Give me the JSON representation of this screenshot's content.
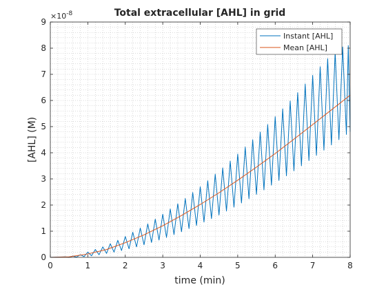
{
  "chart_data": {
    "type": "line",
    "title": "Total extracellular [AHL] in grid",
    "xlabel": "time (min)",
    "ylabel": "[AHL] (M)",
    "y_exponent_label": "×10",
    "y_exponent": "-8",
    "xlim": [
      0,
      8
    ],
    "ylim": [
      0,
      9
    ],
    "xticks": [
      "0",
      "1",
      "2",
      "3",
      "4",
      "5",
      "6",
      "7",
      "8"
    ],
    "yticks": [
      "0",
      "1",
      "2",
      "3",
      "4",
      "5",
      "6",
      "7",
      "8",
      "9"
    ],
    "grid": "minor-dotted",
    "legend_position": "top-right",
    "series": [
      {
        "name": "Instant [AHL]",
        "color": "#0072BD",
        "style": "sawtooth",
        "pulse_period": 0.2,
        "peaks": [
          [
            0.4,
            0.02
          ],
          [
            0.6,
            0.05
          ],
          [
            0.8,
            0.1
          ],
          [
            1.0,
            0.2
          ],
          [
            1.2,
            0.3
          ],
          [
            1.4,
            0.4
          ],
          [
            1.6,
            0.52
          ],
          [
            1.8,
            0.65
          ],
          [
            2.0,
            0.8
          ],
          [
            2.2,
            0.96
          ],
          [
            2.4,
            1.12
          ],
          [
            2.6,
            1.28
          ],
          [
            2.8,
            1.46
          ],
          [
            3.0,
            1.65
          ],
          [
            3.2,
            1.85
          ],
          [
            3.4,
            2.05
          ],
          [
            3.6,
            2.25
          ],
          [
            3.8,
            2.48
          ],
          [
            4.0,
            2.7
          ],
          [
            4.2,
            2.93
          ],
          [
            4.4,
            3.18
          ],
          [
            4.6,
            3.42
          ],
          [
            4.8,
            3.68
          ],
          [
            5.0,
            3.95
          ],
          [
            5.2,
            4.22
          ],
          [
            5.4,
            4.5
          ],
          [
            5.6,
            4.79
          ],
          [
            5.8,
            5.08
          ],
          [
            6.0,
            5.38
          ],
          [
            6.2,
            5.68
          ],
          [
            6.4,
            5.98
          ],
          [
            6.6,
            6.3
          ],
          [
            6.8,
            6.63
          ],
          [
            7.0,
            6.96
          ],
          [
            7.2,
            7.29
          ],
          [
            7.4,
            7.6
          ],
          [
            7.6,
            7.85
          ],
          [
            7.8,
            8.05
          ],
          [
            7.95,
            8.1
          ]
        ],
        "troughs": [
          [
            0.5,
            0.0
          ],
          [
            0.7,
            0.01
          ],
          [
            0.9,
            0.03
          ],
          [
            1.1,
            0.06
          ],
          [
            1.3,
            0.1
          ],
          [
            1.5,
            0.15
          ],
          [
            1.7,
            0.2
          ],
          [
            1.9,
            0.26
          ],
          [
            2.1,
            0.33
          ],
          [
            2.3,
            0.4
          ],
          [
            2.5,
            0.48
          ],
          [
            2.7,
            0.57
          ],
          [
            2.9,
            0.66
          ],
          [
            3.1,
            0.76
          ],
          [
            3.3,
            0.87
          ],
          [
            3.5,
            0.98
          ],
          [
            3.7,
            1.1
          ],
          [
            3.9,
            1.22
          ],
          [
            4.1,
            1.35
          ],
          [
            4.3,
            1.48
          ],
          [
            4.5,
            1.62
          ],
          [
            4.7,
            1.77
          ],
          [
            4.9,
            1.92
          ],
          [
            5.1,
            2.08
          ],
          [
            5.3,
            2.24
          ],
          [
            5.5,
            2.41
          ],
          [
            5.7,
            2.58
          ],
          [
            5.9,
            2.76
          ],
          [
            6.1,
            2.94
          ],
          [
            6.3,
            3.12
          ],
          [
            6.5,
            3.31
          ],
          [
            6.7,
            3.5
          ],
          [
            6.9,
            3.7
          ],
          [
            7.1,
            3.9
          ],
          [
            7.3,
            4.1
          ],
          [
            7.5,
            4.3
          ],
          [
            7.7,
            4.5
          ],
          [
            7.9,
            4.7
          ],
          [
            8.0,
            4.8
          ]
        ]
      },
      {
        "name": "Mean [AHL]",
        "color": "#D95319",
        "x": [
          0,
          0.5,
          1.0,
          1.5,
          2.0,
          2.5,
          3.0,
          3.5,
          4.0,
          4.5,
          5.0,
          5.5,
          6.0,
          6.5,
          7.0,
          7.5,
          8.0
        ],
        "y": [
          0,
          0.02,
          0.13,
          0.3,
          0.56,
          0.86,
          1.21,
          1.6,
          2.02,
          2.47,
          2.95,
          3.45,
          3.97,
          4.52,
          5.08,
          5.64,
          6.2
        ]
      }
    ]
  }
}
